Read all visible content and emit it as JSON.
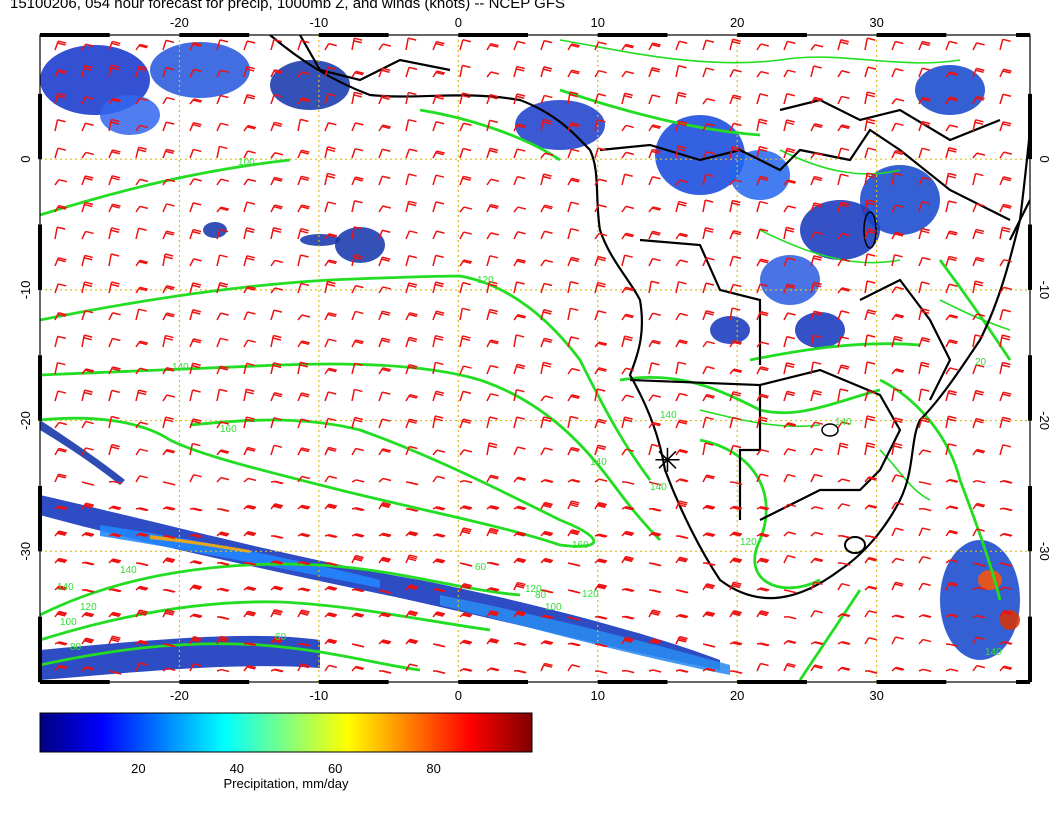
{
  "title": "15100206, 054 hour forecast for precip, 1000mb Z, and winds (knots) -- NCEP GFS",
  "axes": {
    "x_ticks": [
      "-20",
      "-10",
      "0",
      "10",
      "20",
      "30"
    ],
    "y_ticks": [
      "0",
      "-10",
      "-20",
      "-30"
    ],
    "lon_range": [
      -30,
      41
    ],
    "lat_range": [
      -40,
      9.5
    ]
  },
  "contour_labels": [
    "100",
    "120",
    "140",
    "140",
    "160",
    "160",
    "120",
    "140",
    "140",
    "120",
    "140",
    "60",
    "80",
    "100",
    "120",
    "140",
    "60",
    "80",
    "100",
    "120",
    "20",
    "140",
    "140"
  ],
  "colorbar": {
    "ticks": [
      "20",
      "40",
      "60",
      "80"
    ],
    "label": "Precipitation, mm/day",
    "range": [
      0,
      100
    ],
    "colors": [
      "#00007f",
      "#0000ff",
      "#0080ff",
      "#00ffff",
      "#80ff80",
      "#ffff00",
      "#ff8000",
      "#ff0000",
      "#7f0000"
    ]
  },
  "colors": {
    "contour": "#22dd22",
    "wind_barb": "#ee1111",
    "coast": "#000000",
    "grid": "#ddbb22"
  },
  "marker": {
    "lon": 15,
    "lat": -23
  }
}
